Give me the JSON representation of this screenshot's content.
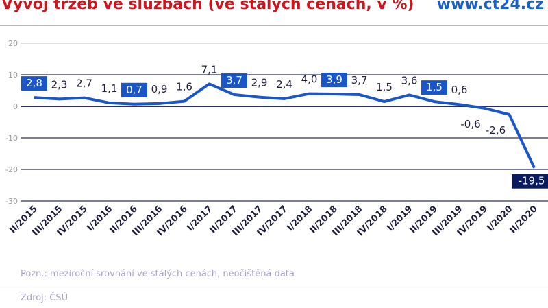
{
  "header": {
    "title": "Vývoj tržeb ve službách (ve stálých cenách, v %)",
    "brand": "www.ct24.cz"
  },
  "chart_data": {
    "type": "line",
    "title": "Vývoj tržeb ve službách (ve stálých cenách, v %)",
    "categories": [
      "II/2015",
      "III/2015",
      "IV/2015",
      "I/2016",
      "II/2016",
      "III/2016",
      "IV/2016",
      "I/2017",
      "II/2017",
      "III/2017",
      "IV/2017",
      "I/2018",
      "II/2018",
      "III/2018",
      "IV/2018",
      "I/2019",
      "II/2019",
      "III/2019",
      "IV/2019",
      "I/2020",
      "II/2020"
    ],
    "values": [
      2.8,
      2.3,
      2.7,
      1.1,
      0.7,
      0.9,
      1.6,
      7.1,
      3.7,
      2.9,
      2.4,
      4.0,
      3.9,
      3.7,
      1.5,
      3.6,
      1.5,
      0.6,
      -0.6,
      -2.6,
      -19.5
    ],
    "labels": [
      "2,8",
      "2,3",
      "2,7",
      "1,1",
      "0,7",
      "0,9",
      "1,6",
      "7,1",
      "3,7",
      "2,9",
      "2,4",
      "4,0",
      "3,9",
      "3,7",
      "1,5",
      "3,6",
      "1,5",
      "0,6",
      "-0,6",
      "-2,6",
      "-19,5"
    ],
    "highlighted": [
      0,
      4,
      8,
      12,
      16,
      20
    ],
    "yticks": [
      20,
      10,
      0,
      -10,
      -20,
      -30
    ],
    "ytick_labels": [
      "20",
      "10",
      "0",
      "-10",
      "-20",
      "-30"
    ],
    "ylim": [
      -30,
      20
    ],
    "grid": true,
    "colors": {
      "line": "#1a56c8",
      "highlight": "#1a56c8",
      "last_highlight": "#0b1a5c",
      "grid": "#2a2f5a",
      "text": "#1d1d3a"
    }
  },
  "footer": {
    "note": "Pozn.: meziroční srovnání ve stálých cenách, neočištěná data",
    "source": "Zdroj: ČSÚ"
  }
}
